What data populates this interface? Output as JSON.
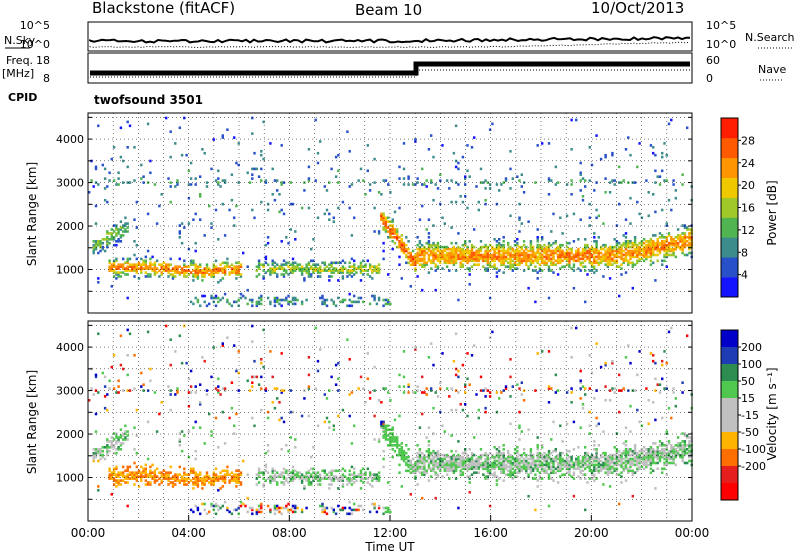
{
  "header": {
    "title": "Blackstone (fitACF)",
    "beam": "Beam 10",
    "date": "10/Oct/2013"
  },
  "strips": {
    "nsky_label": "N.Sky",
    "nsky_ticks": [
      "10^5",
      "10^0"
    ],
    "nsearch_label": "N.Search",
    "nsearch_ticks": [
      "10^5",
      "10^0"
    ],
    "freq_label": "Freq.",
    "freq_unit": "[MHz]",
    "freq_ticks": [
      "18",
      "8"
    ],
    "nave_label": "Nave",
    "nave_ticks": [
      "60",
      "0"
    ],
    "cpid_label": "CPID",
    "cpid_value": "twofsound 3501"
  },
  "colors": {
    "power_scale": [
      "#1414ff",
      "#2850c8",
      "#3c8c8c",
      "#50b450",
      "#a0c828",
      "#f0c800",
      "#ff9600",
      "#ff5a00",
      "#ff1e00"
    ],
    "velocity_scale": [
      "#0000c8",
      "#1e3cb4",
      "#2d8c50",
      "#50c850",
      "#c0c0c0",
      "#c0c0c0",
      "#ffb400",
      "#ff6e00",
      "#e61e1e",
      "#ff0000"
    ]
  },
  "chart_data": [
    {
      "type": "heatmap",
      "name": "power",
      "ylabel": "Slant Range [km]",
      "yticks": [
        "1000",
        "2000",
        "3000",
        "4000"
      ],
      "ylim": [
        0,
        4600
      ],
      "colorbar_label": "Power [dB]",
      "colorbar_ticks": [
        "4",
        "8",
        "12",
        "16",
        "20",
        "24",
        "28"
      ],
      "colorbar_range": [
        0,
        32
      ]
    },
    {
      "type": "heatmap",
      "name": "velocity",
      "ylabel": "Slant Range [km]",
      "yticks": [
        "1000",
        "2000",
        "3000",
        "4000"
      ],
      "ylim": [
        0,
        4600
      ],
      "colorbar_label": "Velocity [m s⁻¹]",
      "colorbar_ticks": [
        "200",
        "100",
        "50",
        "15",
        "-15",
        "-50",
        "-100",
        "-200"
      ],
      "xlabel": "Time UT",
      "xticks": [
        "00:00",
        "04:00",
        "08:00",
        "12:00",
        "16:00",
        "20:00",
        "00:00"
      ],
      "xlim_hours": [
        0,
        24
      ]
    }
  ]
}
